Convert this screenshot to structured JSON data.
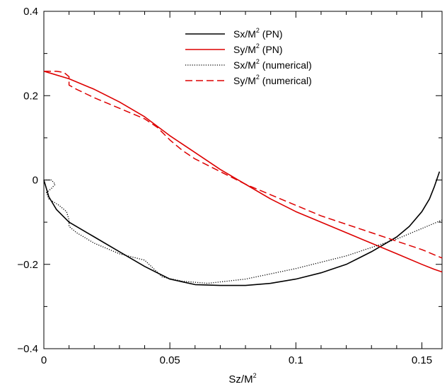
{
  "chart_data": {
    "type": "line",
    "title": "",
    "xlabel": {
      "base": "Sz/M",
      "sup": "2"
    },
    "ylabel": "",
    "xlim": [
      0,
      0.158
    ],
    "ylim": [
      -0.4,
      0.4
    ],
    "x_ticks": [
      0,
      0.05,
      0.1,
      0.15
    ],
    "x_tick_labels": [
      "0",
      "0.05",
      "0.1",
      "0.15"
    ],
    "y_ticks": [
      -0.4,
      -0.2,
      0,
      0.2,
      0.4
    ],
    "y_tick_labels": [
      "−0.4",
      "−0.2",
      "0",
      "0.2",
      "0.4"
    ],
    "grid": false,
    "legend_position": "top-right",
    "series": [
      {
        "name": "Sx/M",
        "name_sup": "2",
        "name_suffix": " (PN)",
        "color": "#000000",
        "dash": "solid",
        "x": [
          0,
          0.002,
          0.005,
          0.01,
          0.02,
          0.03,
          0.04,
          0.05,
          0.06,
          0.07,
          0.08,
          0.09,
          0.1,
          0.11,
          0.12,
          0.13,
          0.14,
          0.145,
          0.15,
          0.153,
          0.155,
          0.157
        ],
        "y": [
          0,
          -0.04,
          -0.07,
          -0.1,
          -0.135,
          -0.17,
          -0.205,
          -0.235,
          -0.248,
          -0.25,
          -0.25,
          -0.245,
          -0.235,
          -0.22,
          -0.2,
          -0.17,
          -0.135,
          -0.11,
          -0.075,
          -0.045,
          -0.015,
          0.02
        ]
      },
      {
        "name": "Sy/M",
        "name_sup": "2",
        "name_suffix": " (PN)",
        "color": "#dd0000",
        "dash": "solid",
        "x": [
          0,
          0.01,
          0.02,
          0.03,
          0.04,
          0.05,
          0.06,
          0.07,
          0.08,
          0.09,
          0.1,
          0.11,
          0.12,
          0.13,
          0.14,
          0.15,
          0.155,
          0.158
        ],
        "y": [
          0.258,
          0.24,
          0.215,
          0.185,
          0.15,
          0.105,
          0.065,
          0.025,
          -0.01,
          -0.045,
          -0.075,
          -0.1,
          -0.125,
          -0.15,
          -0.175,
          -0.2,
          -0.212,
          -0.218
        ]
      },
      {
        "name": "Sx/M",
        "name_sup": "2",
        "name_suffix": " (numerical)",
        "color": "#000000",
        "dash": "dotted",
        "x": [
          0,
          0.003,
          0.0045,
          0.003,
          0.001,
          0.002,
          0.006,
          0.009,
          0.01,
          0.01,
          0.013,
          0.02,
          0.03,
          0.04,
          0.047,
          0.055,
          0.065,
          0.08,
          0.1,
          0.12,
          0.14,
          0.158
        ],
        "y": [
          0,
          0,
          -0.01,
          -0.02,
          -0.03,
          -0.045,
          -0.06,
          -0.075,
          -0.095,
          -0.11,
          -0.125,
          -0.15,
          -0.175,
          -0.19,
          -0.23,
          -0.24,
          -0.245,
          -0.235,
          -0.21,
          -0.18,
          -0.14,
          -0.095
        ]
      },
      {
        "name": "Sy/M",
        "name_sup": "2",
        "name_suffix": " (numerical)",
        "color": "#dd0000",
        "dash": "dashed",
        "x": [
          0,
          0.005,
          0.008,
          0.01,
          0.01,
          0.013,
          0.02,
          0.03,
          0.04,
          0.045,
          0.05,
          0.055,
          0.06,
          0.07,
          0.08,
          0.09,
          0.1,
          0.11,
          0.12,
          0.13,
          0.14,
          0.15,
          0.158
        ],
        "y": [
          0.258,
          0.258,
          0.255,
          0.245,
          0.225,
          0.215,
          0.195,
          0.17,
          0.145,
          0.125,
          0.095,
          0.07,
          0.05,
          0.02,
          -0.01,
          -0.035,
          -0.06,
          -0.085,
          -0.105,
          -0.125,
          -0.145,
          -0.165,
          -0.185
        ]
      }
    ]
  }
}
